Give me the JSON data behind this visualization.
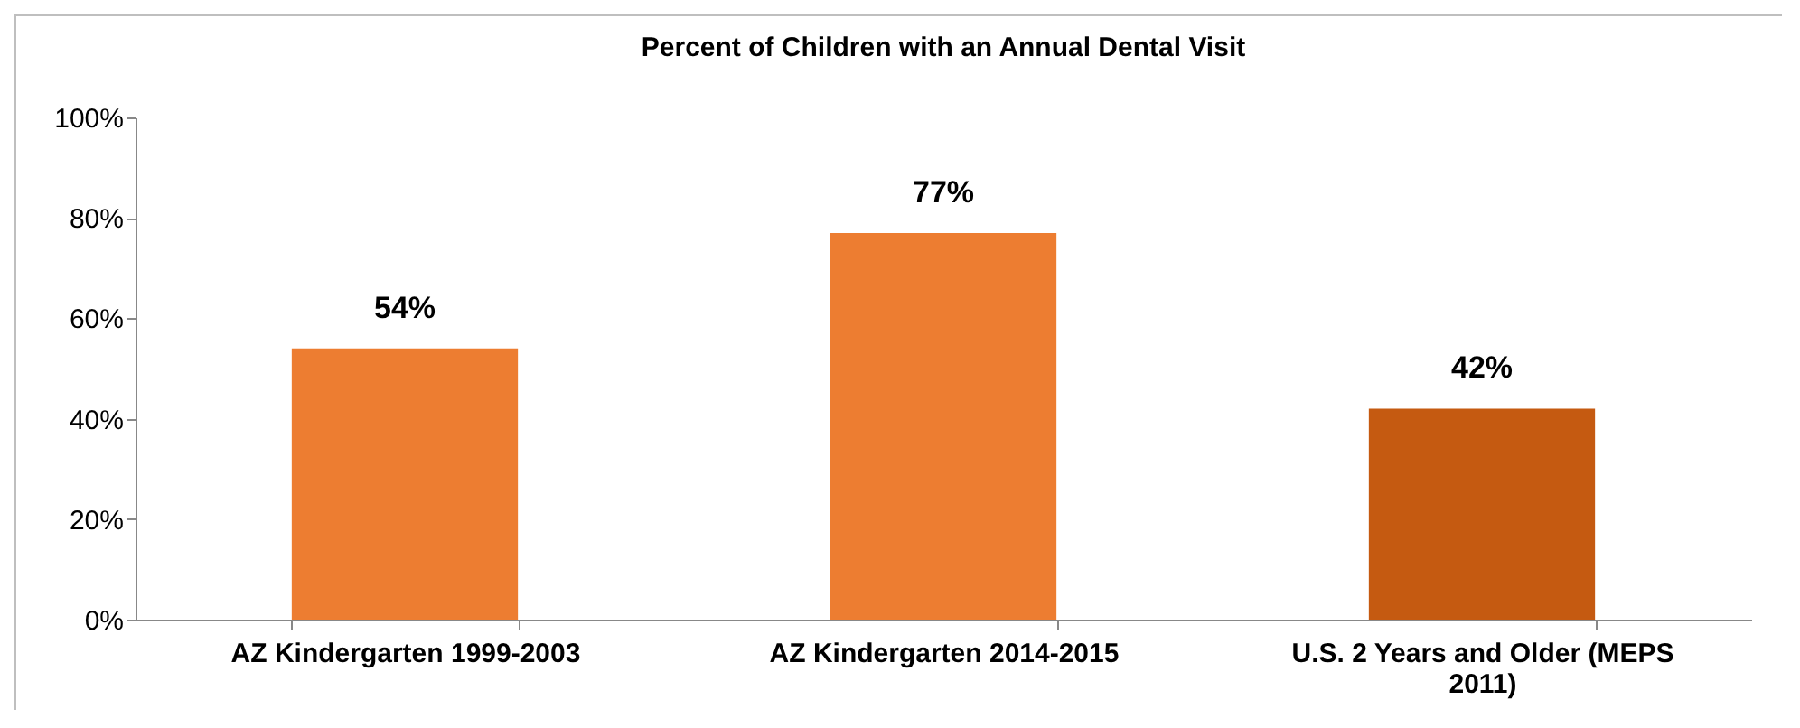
{
  "chart_data": {
    "type": "bar",
    "title": "Percent of Children with an Annual Dental Visit",
    "categories": [
      "AZ Kindergarten 1999-2003",
      "AZ Kindergarten 2014-2015",
      "U.S. 2 Years and Older (MEPS 2011)"
    ],
    "values": [
      54,
      77,
      42
    ],
    "colors": [
      "#ed7d31",
      "#ed7d31",
      "#c55a11"
    ],
    "value_labels": [
      "54%",
      "77%",
      "42%"
    ],
    "ylim": [
      0,
      100
    ],
    "yticks": [
      {
        "value": 0,
        "label": "0%"
      },
      {
        "value": 20,
        "label": "20%"
      },
      {
        "value": 40,
        "label": "40%"
      },
      {
        "value": 60,
        "label": "60%"
      },
      {
        "value": 80,
        "label": "80%"
      },
      {
        "value": 100,
        "label": "100%"
      }
    ],
    "grid": false
  }
}
